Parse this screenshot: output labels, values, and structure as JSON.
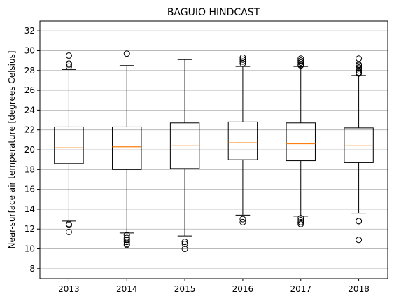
{
  "chart_data": {
    "type": "box",
    "title": "BAGUIO HINDCAST",
    "xlabel": "",
    "ylabel": "Near-surface air temperature [degrees Celsius]",
    "ylim": [
      7,
      33
    ],
    "yticks": [
      8,
      10,
      12,
      14,
      16,
      18,
      20,
      22,
      24,
      26,
      28,
      30,
      32
    ],
    "grid": "y",
    "categories": [
      "2013",
      "2014",
      "2015",
      "2016",
      "2017",
      "2018"
    ],
    "boxes": [
      {
        "label": "2013",
        "whisker_low": 12.8,
        "q1": 18.6,
        "median": 20.2,
        "q3": 22.3,
        "whisker_high": 28.1,
        "fliers": [
          12.5,
          12.4,
          11.7,
          28.4,
          28.6,
          28.7,
          29.5
        ]
      },
      {
        "label": "2014",
        "whisker_low": 11.6,
        "q1": 18.0,
        "median": 20.3,
        "q3": 22.3,
        "whisker_high": 28.5,
        "fliers": [
          11.4,
          11.1,
          10.9,
          10.7,
          10.5,
          10.4,
          29.7
        ]
      },
      {
        "label": "2015",
        "whisker_low": 11.3,
        "q1": 18.1,
        "median": 20.4,
        "q3": 22.7,
        "whisker_high": 29.1,
        "fliers": [
          10.7,
          10.5,
          10.0
        ]
      },
      {
        "label": "2016",
        "whisker_low": 13.4,
        "q1": 19.0,
        "median": 20.7,
        "q3": 22.8,
        "whisker_high": 28.4,
        "fliers": [
          13.0,
          12.7,
          28.7,
          28.9,
          29.1,
          29.3
        ]
      },
      {
        "label": "2017",
        "whisker_low": 13.3,
        "q1": 18.9,
        "median": 20.6,
        "q3": 22.7,
        "whisker_high": 28.4,
        "fliers": [
          13.1,
          12.9,
          12.7,
          12.5,
          28.5,
          28.6,
          28.8,
          29.0,
          29.2
        ]
      },
      {
        "label": "2018",
        "whisker_low": 13.6,
        "q1": 18.7,
        "median": 20.4,
        "q3": 22.2,
        "whisker_high": 27.5,
        "fliers": [
          12.8,
          12.8,
          10.9,
          27.7,
          27.8,
          28.0,
          28.2,
          28.3,
          28.5,
          28.6,
          29.2
        ]
      }
    ],
    "colors": {
      "box": "#000000",
      "median": "#ff7f0e",
      "grid": "#b0b0b0"
    }
  }
}
